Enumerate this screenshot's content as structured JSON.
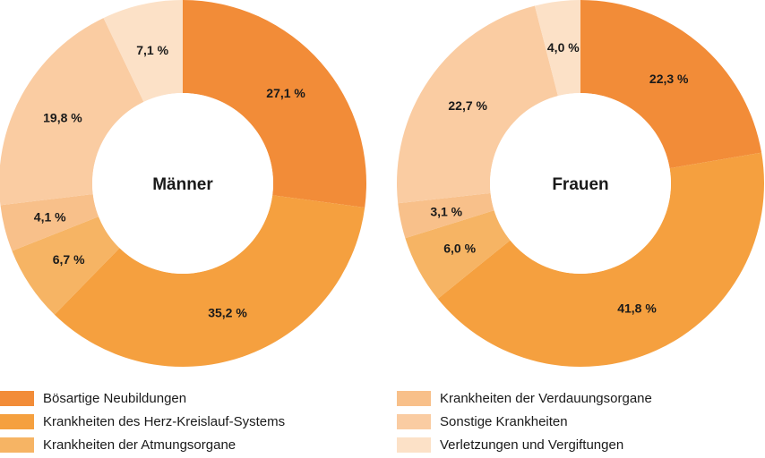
{
  "chart_data": [
    {
      "type": "pie",
      "title": "Männer",
      "categories": [
        "Bösartige Neubildungen",
        "Krankheiten des Herz-Kreislauf-Systems",
        "Krankheiten der Atmungsorgane",
        "Krankheiten der Verdauungsorgane",
        "Sonstige Krankheiten",
        "Verletzungen und Vergiftungen"
      ],
      "values": [
        27.1,
        35.2,
        6.7,
        4.1,
        19.8,
        7.1
      ],
      "labels": [
        "27,1 %",
        "35,2 %",
        "6,7 %",
        "4,1 %",
        "19,8 %",
        "7,1 %"
      ]
    },
    {
      "type": "pie",
      "title": "Frauen",
      "categories": [
        "Bösartige Neubildungen",
        "Krankheiten des Herz-Kreislauf-Systems",
        "Krankheiten der Atmungsorgane",
        "Krankheiten der Verdauungsorgane",
        "Sonstige Krankheiten",
        "Verletzungen und Vergiftungen"
      ],
      "values": [
        22.3,
        41.8,
        6.0,
        3.1,
        22.7,
        4.0
      ],
      "labels": [
        "22,3 %",
        "41,8 %",
        "6,0 %",
        "3,1 %",
        "22,7 %",
        "4,0 %"
      ]
    }
  ],
  "colors": [
    "#F28C38",
    "#F5A03F",
    "#F6B464",
    "#F8C08A",
    "#FACCA2",
    "#FCE1C7"
  ],
  "legend": {
    "items": [
      {
        "label": "Bösartige Neubildungen",
        "color": "#F28C38"
      },
      {
        "label": "Krankheiten des Herz-Kreislauf-Systems",
        "color": "#F5A03F"
      },
      {
        "label": "Krankheiten der Atmungsorgane",
        "color": "#F6B464"
      },
      {
        "label": "Krankheiten der Verdauungsorgane",
        "color": "#F8C08A"
      },
      {
        "label": "Sonstige Krankheiten",
        "color": "#FACCA2"
      },
      {
        "label": "Verletzungen und Vergiftungen",
        "color": "#FCE1C7"
      }
    ]
  }
}
